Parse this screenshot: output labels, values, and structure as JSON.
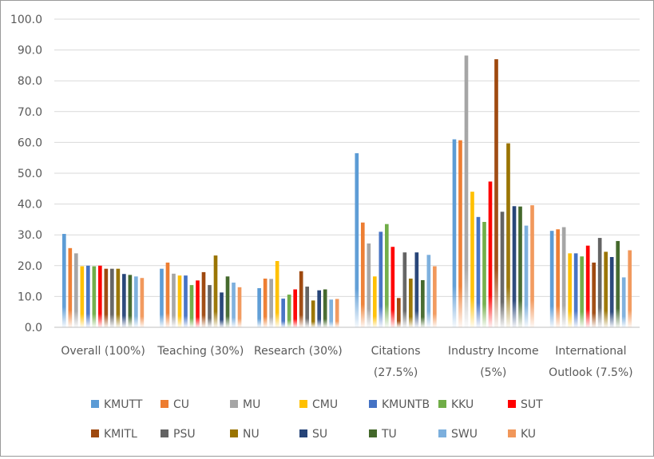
{
  "chart_data": {
    "type": "bar",
    "title": "",
    "xlabel": "",
    "ylabel": "",
    "ylim": [
      0,
      100
    ],
    "yticks": [
      "0.0",
      "10.0",
      "20.0",
      "30.0",
      "40.0",
      "50.0",
      "60.0",
      "70.0",
      "80.0",
      "90.0",
      "100.0"
    ],
    "grid": true,
    "legend_position": "bottom",
    "bar_style": "gradient fading to white at base",
    "categories": [
      [
        "Overall (100%)"
      ],
      [
        "Teaching (30%)"
      ],
      [
        "Research (30%)"
      ],
      [
        "Citations",
        "(27.5%)"
      ],
      [
        "Industry Income",
        "(5%)"
      ],
      [
        "International",
        "Outlook (7.5%)"
      ]
    ],
    "series": [
      {
        "name": "KMUTT",
        "color": "#5b9bd5",
        "values": [
          30.3,
          19.0,
          12.7,
          56.5,
          61.0,
          31.3
        ]
      },
      {
        "name": "CU",
        "color": "#ed7d31",
        "values": [
          25.7,
          21.0,
          15.8,
          34.0,
          60.7,
          31.8
        ]
      },
      {
        "name": "MU",
        "color": "#a5a5a5",
        "values": [
          24.0,
          17.4,
          15.7,
          27.2,
          88.2,
          32.5
        ]
      },
      {
        "name": "CMU",
        "color": "#ffc000",
        "values": [
          19.8,
          16.8,
          21.5,
          16.5,
          44.0,
          24.0
        ]
      },
      {
        "name": "KMUNTB",
        "color": "#4472c4",
        "values": [
          20.0,
          16.8,
          9.3,
          31.0,
          35.8,
          24.0
        ]
      },
      {
        "name": "KKU",
        "color": "#70ad47",
        "values": [
          19.8,
          13.7,
          10.6,
          33.5,
          34.2,
          23.0
        ]
      },
      {
        "name": "SUT",
        "color": "#ff0000",
        "values": [
          20.0,
          15.2,
          12.3,
          26.1,
          47.3,
          26.5
        ]
      },
      {
        "name": "KMITL",
        "color": "#9e480e",
        "values": [
          19.0,
          17.9,
          18.2,
          9.5,
          87.0,
          21.0
        ]
      },
      {
        "name": "PSU",
        "color": "#636363",
        "values": [
          19.0,
          13.7,
          13.2,
          24.3,
          37.5,
          29.0
        ]
      },
      {
        "name": "NU",
        "color": "#997300",
        "values": [
          19.0,
          23.3,
          8.7,
          15.8,
          59.7,
          24.5
        ]
      },
      {
        "name": "SU",
        "color": "#264478",
        "values": [
          17.3,
          11.3,
          12.0,
          24.3,
          39.3,
          22.8
        ]
      },
      {
        "name": "TU",
        "color": "#43682b",
        "values": [
          17.0,
          16.5,
          12.3,
          15.3,
          39.2,
          28.0
        ]
      },
      {
        "name": "SWU",
        "color": "#7cafdd",
        "values": [
          16.5,
          14.5,
          9.0,
          23.5,
          33.0,
          16.2
        ]
      },
      {
        "name": "KU",
        "color": "#f1975a",
        "values": [
          16.0,
          13.0,
          9.2,
          19.8,
          39.6,
          25.0
        ]
      }
    ]
  }
}
